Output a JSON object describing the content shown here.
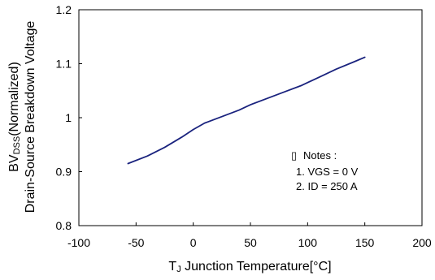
{
  "chart_data": {
    "type": "line",
    "title": "",
    "xlabel_prefix": "T",
    "xlabel_subscript": "J",
    "xlabel_main": " Junction Temperature[°C]",
    "ylabel_line1_prefix": "BV",
    "ylabel_line1_subscript": "DSS",
    "ylabel_line1_suffix": "(Normalized)",
    "ylabel_line2": "Drain-Source Breakdown Voltage",
    "xlim": [
      -100,
      200
    ],
    "ylim": [
      0.8,
      1.2
    ],
    "x_ticks": [
      -100,
      -50,
      0,
      50,
      100,
      150,
      200
    ],
    "x_tick_labels": [
      "-100",
      "-50",
      "0",
      "50",
      "100",
      "150",
      "200"
    ],
    "y_ticks": [
      0.8,
      0.9,
      1.0,
      1.1,
      1.2
    ],
    "y_tick_labels": [
      "0.8",
      "0.9",
      "1",
      "1.1",
      "1.2"
    ],
    "grid": false,
    "series": [
      {
        "color": "#1a237e",
        "points": [
          [
            -57,
            0.915
          ],
          [
            -40,
            0.929
          ],
          [
            -25,
            0.945
          ],
          [
            -10,
            0.964
          ],
          [
            0,
            0.978
          ],
          [
            10,
            0.99
          ],
          [
            25,
            1.002
          ],
          [
            40,
            1.014
          ],
          [
            50,
            1.024
          ],
          [
            65,
            1.036
          ],
          [
            80,
            1.048
          ],
          [
            95,
            1.06
          ],
          [
            110,
            1.075
          ],
          [
            125,
            1.09
          ],
          [
            140,
            1.103
          ],
          [
            150,
            1.112
          ]
        ]
      }
    ],
    "notes": {
      "bullet": "▯",
      "header": "Notes :",
      "lines": [
        "1. VGS = 0 V",
        "2. ID = 250  A"
      ]
    }
  }
}
